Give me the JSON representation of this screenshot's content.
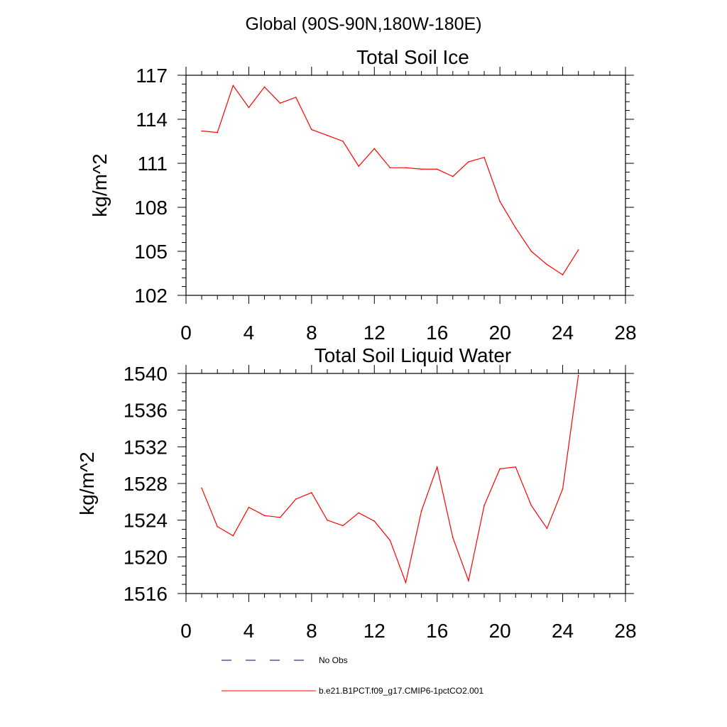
{
  "page_title": "Global (90S-90N,180W-180E)",
  "chart_data": [
    {
      "type": "line",
      "title": "Total Soil Ice",
      "xlabel": "",
      "ylabel": "kg/m^2",
      "xlim": [
        0,
        28
      ],
      "ylim": [
        102,
        117
      ],
      "x_ticks": [
        "0",
        "4",
        "8",
        "12",
        "16",
        "20",
        "24",
        "28"
      ],
      "y_ticks": [
        "102",
        "105",
        "108",
        "111",
        "114",
        "117"
      ],
      "grid": false,
      "series": [
        {
          "name": "b.e21.B1PCT.f09_g17.CMIP6-1pctCO2.001",
          "color": "#ff0000",
          "x": [
            1,
            2,
            3,
            4,
            5,
            6,
            7,
            8,
            9,
            10,
            11,
            12,
            13,
            14,
            15,
            16,
            17,
            18,
            19,
            20,
            21,
            22,
            23,
            24,
            25
          ],
          "y": [
            113.2,
            113.1,
            116.3,
            114.8,
            116.2,
            115.1,
            115.5,
            113.3,
            112.9,
            112.5,
            110.8,
            112.0,
            110.7,
            110.7,
            110.6,
            110.6,
            110.1,
            111.1,
            111.4,
            108.4,
            106.6,
            105.0,
            104.1,
            103.4,
            105.1
          ]
        }
      ]
    },
    {
      "type": "line",
      "title": "Total Soil Liquid Water",
      "xlabel": "",
      "ylabel": "kg/m^2",
      "xlim": [
        0,
        28
      ],
      "ylim": [
        1516,
        1540
      ],
      "x_ticks": [
        "0",
        "4",
        "8",
        "12",
        "16",
        "20",
        "24",
        "28"
      ],
      "y_ticks": [
        "1516",
        "1520",
        "1524",
        "1528",
        "1532",
        "1536",
        "1540"
      ],
      "grid": false,
      "series": [
        {
          "name": "b.e21.B1PCT.f09_g17.CMIP6-1pctCO2.001",
          "color": "#ff0000",
          "x": [
            1,
            2,
            3,
            4,
            5,
            6,
            7,
            8,
            9,
            10,
            11,
            12,
            13,
            14,
            15,
            16,
            17,
            18,
            19,
            20,
            21,
            22,
            23,
            24,
            25
          ],
          "y": [
            1527.5,
            1523.3,
            1522.3,
            1525.4,
            1524.5,
            1524.3,
            1526.3,
            1527.0,
            1524.0,
            1523.4,
            1524.8,
            1523.9,
            1521.8,
            1517.2,
            1525.0,
            1529.8,
            1522.1,
            1517.4,
            1525.6,
            1529.6,
            1529.8,
            1525.6,
            1523.1,
            1527.4,
            1539.8
          ]
        }
      ]
    }
  ],
  "legend": {
    "placement": "bottom",
    "entries": [
      {
        "label": "No Obs",
        "style": "dashed",
        "color": "#000066"
      },
      {
        "label": "b.e21.B1PCT.f09_g17.CMIP6-1pctCO2.001",
        "style": "solid",
        "color": "#ff0000"
      }
    ]
  }
}
